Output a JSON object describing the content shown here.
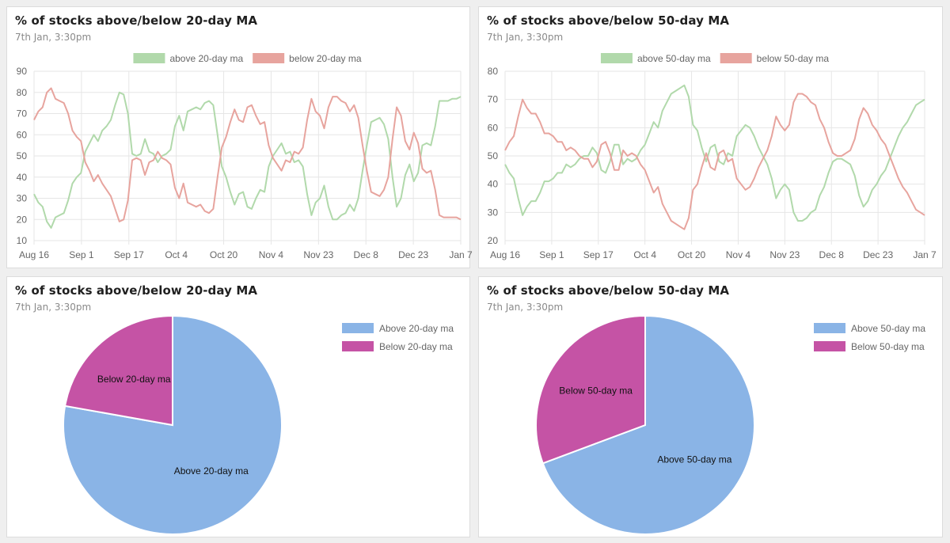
{
  "cards": [
    {
      "title": "% of stocks above/below 20-day MA",
      "subtitle": "7th Jan, 3:30pm"
    },
    {
      "title": "% of stocks above/below 50-day MA",
      "subtitle": "7th Jan, 3:30pm"
    },
    {
      "title": "% of stocks above/below 20-day MA",
      "subtitle": "7th Jan, 3:30pm"
    },
    {
      "title": "% of stocks above/below 50-day MA",
      "subtitle": "7th Jan, 3:30pm"
    }
  ],
  "chart_data": [
    {
      "type": "line",
      "title": "% of stocks above/below 20-day MA",
      "ylim": [
        10,
        90
      ],
      "yticks": [
        10,
        20,
        30,
        40,
        50,
        60,
        70,
        80,
        90
      ],
      "x_tick_labels": [
        "Aug 16",
        "Sep 1",
        "Sep 17",
        "Oct 4",
        "Oct 20",
        "Nov 4",
        "Nov 23",
        "Dec 8",
        "Dec 23",
        "Jan 7"
      ],
      "legend_position": "top-center",
      "series": [
        {
          "name": "above 20-day ma",
          "color": "#b1d9ab",
          "values": [
            32,
            28,
            26,
            19,
            16,
            21,
            22,
            23,
            29,
            37,
            40,
            42,
            52,
            56,
            60,
            57,
            62,
            64,
            67,
            74,
            80,
            79,
            70,
            51,
            50,
            51,
            58,
            52,
            51,
            47,
            50,
            51,
            53,
            64,
            69,
            62,
            71,
            72,
            73,
            72,
            75,
            76,
            74,
            60,
            45,
            40,
            33,
            27,
            32,
            33,
            26,
            25,
            30,
            34,
            33,
            45,
            50,
            53,
            56,
            51,
            52,
            47,
            48,
            45,
            32,
            22,
            28,
            30,
            36,
            26,
            20,
            20,
            22,
            23,
            27,
            24,
            30,
            43,
            55,
            66,
            67,
            68,
            65,
            58,
            40,
            26,
            30,
            41,
            46,
            38,
            42,
            55,
            56,
            55,
            64,
            76,
            76,
            76,
            77,
            77,
            78
          ]
        },
        {
          "name": "below 20-day ma",
          "color": "#e7a49e",
          "values": [
            67,
            71,
            73,
            80,
            82,
            77,
            76,
            75,
            70,
            62,
            59,
            57,
            47,
            43,
            38,
            41,
            37,
            34,
            31,
            25,
            19,
            20,
            29,
            48,
            49,
            48,
            41,
            47,
            48,
            52,
            49,
            48,
            46,
            35,
            30,
            37,
            28,
            27,
            26,
            27,
            24,
            23,
            25,
            40,
            54,
            59,
            66,
            72,
            67,
            66,
            73,
            74,
            69,
            65,
            66,
            55,
            49,
            46,
            43,
            48,
            47,
            52,
            51,
            54,
            67,
            77,
            71,
            69,
            63,
            73,
            78,
            78,
            76,
            75,
            71,
            74,
            68,
            55,
            43,
            33,
            32,
            31,
            34,
            40,
            58,
            73,
            69,
            57,
            53,
            61,
            56,
            44,
            42,
            43,
            34,
            22,
            21,
            21,
            21,
            21,
            20
          ]
        }
      ]
    },
    {
      "type": "line",
      "title": "% of stocks above/below 50-day MA",
      "ylim": [
        20,
        80
      ],
      "yticks": [
        20,
        30,
        40,
        50,
        60,
        70,
        80
      ],
      "x_tick_labels": [
        "Aug 16",
        "Sep 1",
        "Sep 17",
        "Oct 4",
        "Oct 20",
        "Nov 4",
        "Nov 23",
        "Dec 8",
        "Dec 23",
        "Jan 7"
      ],
      "legend_position": "top-center",
      "series": [
        {
          "name": "above 50-day ma",
          "color": "#b1d9ab",
          "values": [
            47,
            44,
            42,
            35,
            29,
            32,
            34,
            34,
            37,
            41,
            41,
            42,
            44,
            44,
            47,
            46,
            47,
            49,
            50,
            50,
            53,
            51,
            45,
            44,
            48,
            54,
            54,
            47,
            49,
            48,
            49,
            52,
            54,
            58,
            62,
            60,
            66,
            69,
            72,
            73,
            74,
            75,
            71,
            61,
            59,
            53,
            48,
            53,
            54,
            48,
            47,
            51,
            50,
            57,
            59,
            61,
            60,
            57,
            53,
            50,
            47,
            42,
            35,
            38,
            40,
            38,
            30,
            27,
            27,
            28,
            30,
            31,
            36,
            39,
            44,
            48,
            49,
            49,
            48,
            47,
            43,
            36,
            32,
            34,
            38,
            40,
            43,
            45,
            49,
            53,
            57,
            60,
            62,
            65,
            68,
            69,
            70
          ]
        },
        {
          "name": "below 50-day ma",
          "color": "#e7a49e",
          "values": [
            52,
            55,
            57,
            64,
            70,
            67,
            65,
            65,
            62,
            58,
            58,
            57,
            55,
            55,
            52,
            53,
            52,
            50,
            49,
            49,
            46,
            48,
            54,
            55,
            51,
            45,
            45,
            52,
            50,
            51,
            50,
            47,
            45,
            41,
            37,
            39,
            33,
            30,
            27,
            26,
            25,
            24,
            28,
            38,
            40,
            46,
            51,
            46,
            45,
            51,
            52,
            48,
            49,
            42,
            40,
            38,
            39,
            42,
            46,
            49,
            52,
            57,
            64,
            61,
            59,
            61,
            69,
            72,
            72,
            71,
            69,
            68,
            63,
            60,
            55,
            51,
            50,
            50,
            51,
            52,
            56,
            63,
            67,
            65,
            61,
            59,
            56,
            54,
            50,
            46,
            42,
            39,
            37,
            34,
            31,
            30,
            29
          ]
        }
      ]
    },
    {
      "type": "pie",
      "title": "% of stocks above/below 20-day MA",
      "labels": [
        "Above 20-day ma",
        "Below 20-day ma"
      ],
      "values": [
        77.8,
        22.2
      ],
      "colors": [
        "#8ab4e6",
        "#c553a5"
      ],
      "legend_position": "top-right"
    },
    {
      "type": "pie",
      "title": "% of stocks above/below 50-day MA",
      "labels": [
        "Above 50-day ma",
        "Below 50-day ma"
      ],
      "values": [
        69.3,
        30.7
      ],
      "colors": [
        "#8ab4e6",
        "#c553a5"
      ],
      "legend_position": "top-right"
    }
  ]
}
